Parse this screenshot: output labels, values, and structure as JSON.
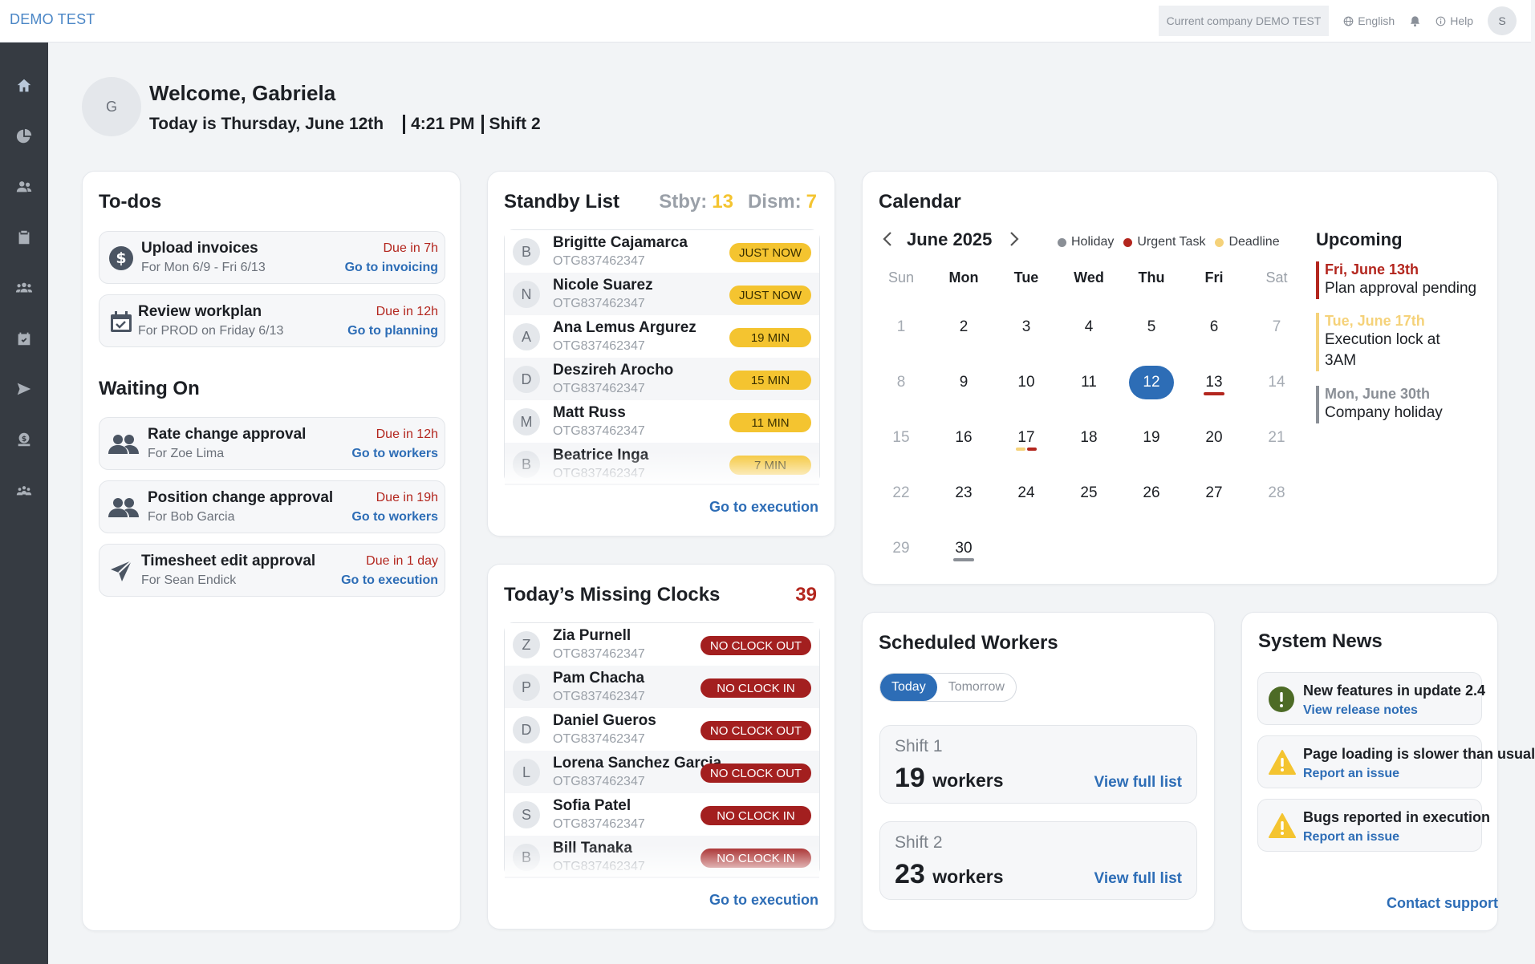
{
  "header": {
    "brand": "DEMO TEST",
    "company": "Current company DEMO TEST",
    "language": "English",
    "help": "Help",
    "user_initial": "S"
  },
  "sidebar": {
    "items": [
      {
        "icon": "home-icon",
        "active": true
      },
      {
        "icon": "pie-chart-icon"
      },
      {
        "icon": "users-icon"
      },
      {
        "icon": "clipboard-icon"
      },
      {
        "icon": "group-icon"
      },
      {
        "icon": "calendar-check-icon"
      },
      {
        "icon": "send-icon"
      },
      {
        "icon": "payroll-icon"
      },
      {
        "icon": "team-icon"
      }
    ]
  },
  "welcome": {
    "initial": "G",
    "title": "Welcome, Gabriela",
    "date": "Today is Thursday, June 12th",
    "time": "4:21 PM",
    "shift": "Shift 2"
  },
  "todos": {
    "title": "To-dos",
    "items": [
      {
        "icon": "dollar-icon",
        "name": "Upload invoices",
        "sub": "For Mon 6/9 - Fri 6/13",
        "due": "Due in 7h",
        "link": "Go to invoicing"
      },
      {
        "icon": "calendar-check-icon",
        "name": "Review workplan",
        "sub": "For PROD on Friday 6/13",
        "due": "Due in 12h",
        "link": "Go to planning"
      }
    ]
  },
  "waiting": {
    "title": "Waiting On",
    "items": [
      {
        "icon": "users-icon",
        "name": "Rate change approval",
        "sub": "For Zoe Lima",
        "due": "Due in 12h",
        "link": "Go to workers"
      },
      {
        "icon": "users-icon",
        "name": "Position change approval",
        "sub": "For Bob Garcia",
        "due": "Due in 19h",
        "link": "Go to workers"
      },
      {
        "icon": "send-icon",
        "name": "Timesheet edit approval",
        "sub": "For Sean Endick",
        "due": "Due in 1 day",
        "link": "Go to execution"
      }
    ]
  },
  "standby": {
    "title": "Standby List",
    "stby_label": "Stby:",
    "stby_count": "13",
    "dism_label": "Dism:",
    "dism_count": "7",
    "rows": [
      {
        "initial": "B",
        "name": "Brigitte Cajamarca",
        "id": "OTG837462347",
        "badge": "JUST NOW"
      },
      {
        "initial": "N",
        "name": "Nicole Suarez",
        "id": "OTG837462347",
        "badge": "JUST NOW"
      },
      {
        "initial": "A",
        "name": "Ana Lemus Argurez",
        "id": "OTG837462347",
        "badge": "19 MIN"
      },
      {
        "initial": "D",
        "name": "Deszireh Arocho",
        "id": "OTG837462347",
        "badge": "15 MIN"
      },
      {
        "initial": "M",
        "name": "Matt Russ",
        "id": "OTG837462347",
        "badge": "11 MIN"
      },
      {
        "initial": "B",
        "name": "Beatrice Inga",
        "id": "OTG837462347",
        "badge": "7 MIN"
      }
    ],
    "link": "Go to execution"
  },
  "missing": {
    "title": "Today’s Missing Clocks",
    "count": "39",
    "rows": [
      {
        "initial": "Z",
        "name": "Zia Purnell",
        "id": "OTG837462347",
        "badge": "NO CLOCK OUT"
      },
      {
        "initial": "P",
        "name": "Pam Chacha",
        "id": "OTG837462347",
        "badge": "NO CLOCK IN"
      },
      {
        "initial": "D",
        "name": "Daniel Gueros",
        "id": "OTG837462347",
        "badge": "NO CLOCK OUT"
      },
      {
        "initial": "L",
        "name": "Lorena Sanchez Garcia",
        "id": "OTG837462347",
        "badge": "NO CLOCK OUT"
      },
      {
        "initial": "S",
        "name": "Sofia Patel",
        "id": "OTG837462347",
        "badge": "NO CLOCK IN"
      },
      {
        "initial": "B",
        "name": "Bill Tanaka",
        "id": "OTG837462347",
        "badge": "NO CLOCK IN"
      }
    ],
    "link": "Go to execution"
  },
  "calendar": {
    "title": "Calendar",
    "month": "June 2025",
    "legend": [
      {
        "label": "Holiday",
        "color": "#8a8f96"
      },
      {
        "label": "Urgent Task",
        "color": "#b3261e"
      },
      {
        "label": "Deadline",
        "color": "#f5d27a"
      }
    ],
    "weekdays": [
      "Sun",
      "Mon",
      "Tue",
      "Wed",
      "Thu",
      "Fri",
      "Sat"
    ],
    "weeks": [
      [
        "1",
        "2",
        "3",
        "4",
        "5",
        "6",
        "7"
      ],
      [
        "8",
        "9",
        "10",
        "11",
        "12",
        "13",
        "14"
      ],
      [
        "15",
        "16",
        "17",
        "18",
        "19",
        "20",
        "21"
      ],
      [
        "22",
        "23",
        "24",
        "25",
        "26",
        "27",
        "28"
      ],
      [
        "29",
        "30"
      ]
    ],
    "today": "12",
    "upcoming_title": "Upcoming",
    "upcoming": [
      {
        "date": "Fri, June 13th",
        "text": "Plan approval pending",
        "color": "#b3261e"
      },
      {
        "date": "Tue, June 17th",
        "text": "Execution lock at 3AM",
        "color": "#f5d27a"
      },
      {
        "date": "Mon, June 30th",
        "text": "Company holiday",
        "color": "#8a8f96"
      }
    ]
  },
  "scheduled": {
    "title": "Scheduled Workers",
    "tabs": [
      "Today",
      "Tomorrow"
    ],
    "shifts": [
      {
        "name": "Shift 1",
        "count": "19",
        "unit": "workers",
        "link": "View full list"
      },
      {
        "name": "Shift 2",
        "count": "23",
        "unit": "workers",
        "link": "View full list"
      }
    ]
  },
  "news": {
    "title": "System News",
    "items": [
      {
        "icon": "info-circle-icon",
        "title": "New features in update 2.4",
        "link": "View release notes"
      },
      {
        "icon": "warning-icon",
        "title": "Page loading is slower than usual",
        "link": "Report an issue"
      },
      {
        "icon": "warning-icon",
        "title": "Bugs reported in execution",
        "link": "Report an issue"
      }
    ],
    "support": "Contact support"
  }
}
